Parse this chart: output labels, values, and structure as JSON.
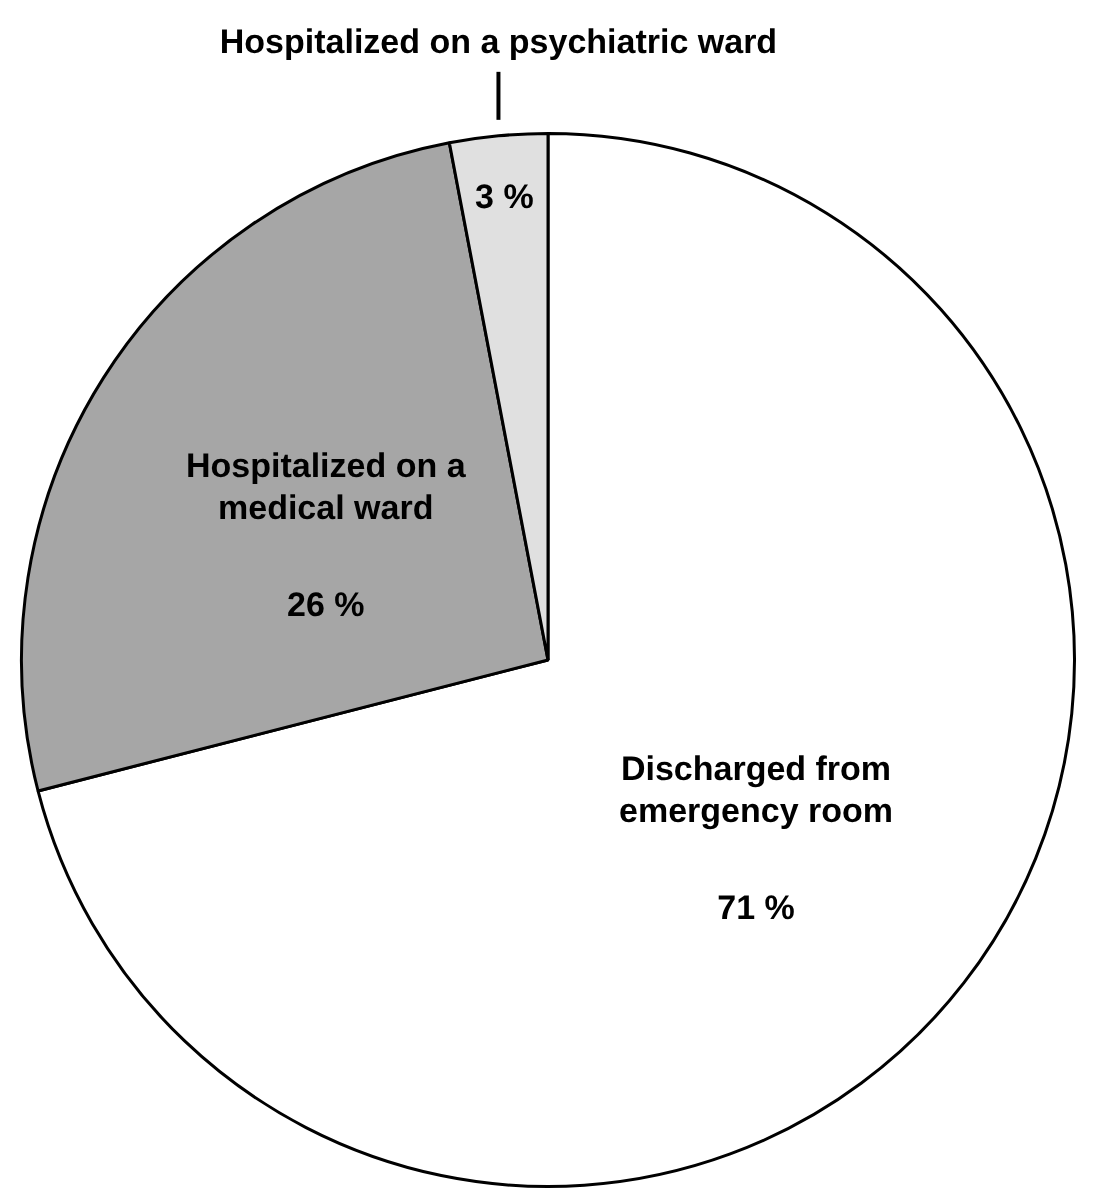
{
  "chart_data": {
    "type": "pie",
    "categories": [
      "Discharged from emergency room",
      "Hospitalized on a medical ward",
      "Hospitalized on a psychiatric ward"
    ],
    "values": [
      71,
      26,
      3
    ],
    "colors": [
      "#ffffff",
      "#a6a6a6",
      "#e0e0e0"
    ],
    "value_labels": [
      "71 %",
      "26 %",
      "3 %"
    ],
    "legend": false
  }
}
